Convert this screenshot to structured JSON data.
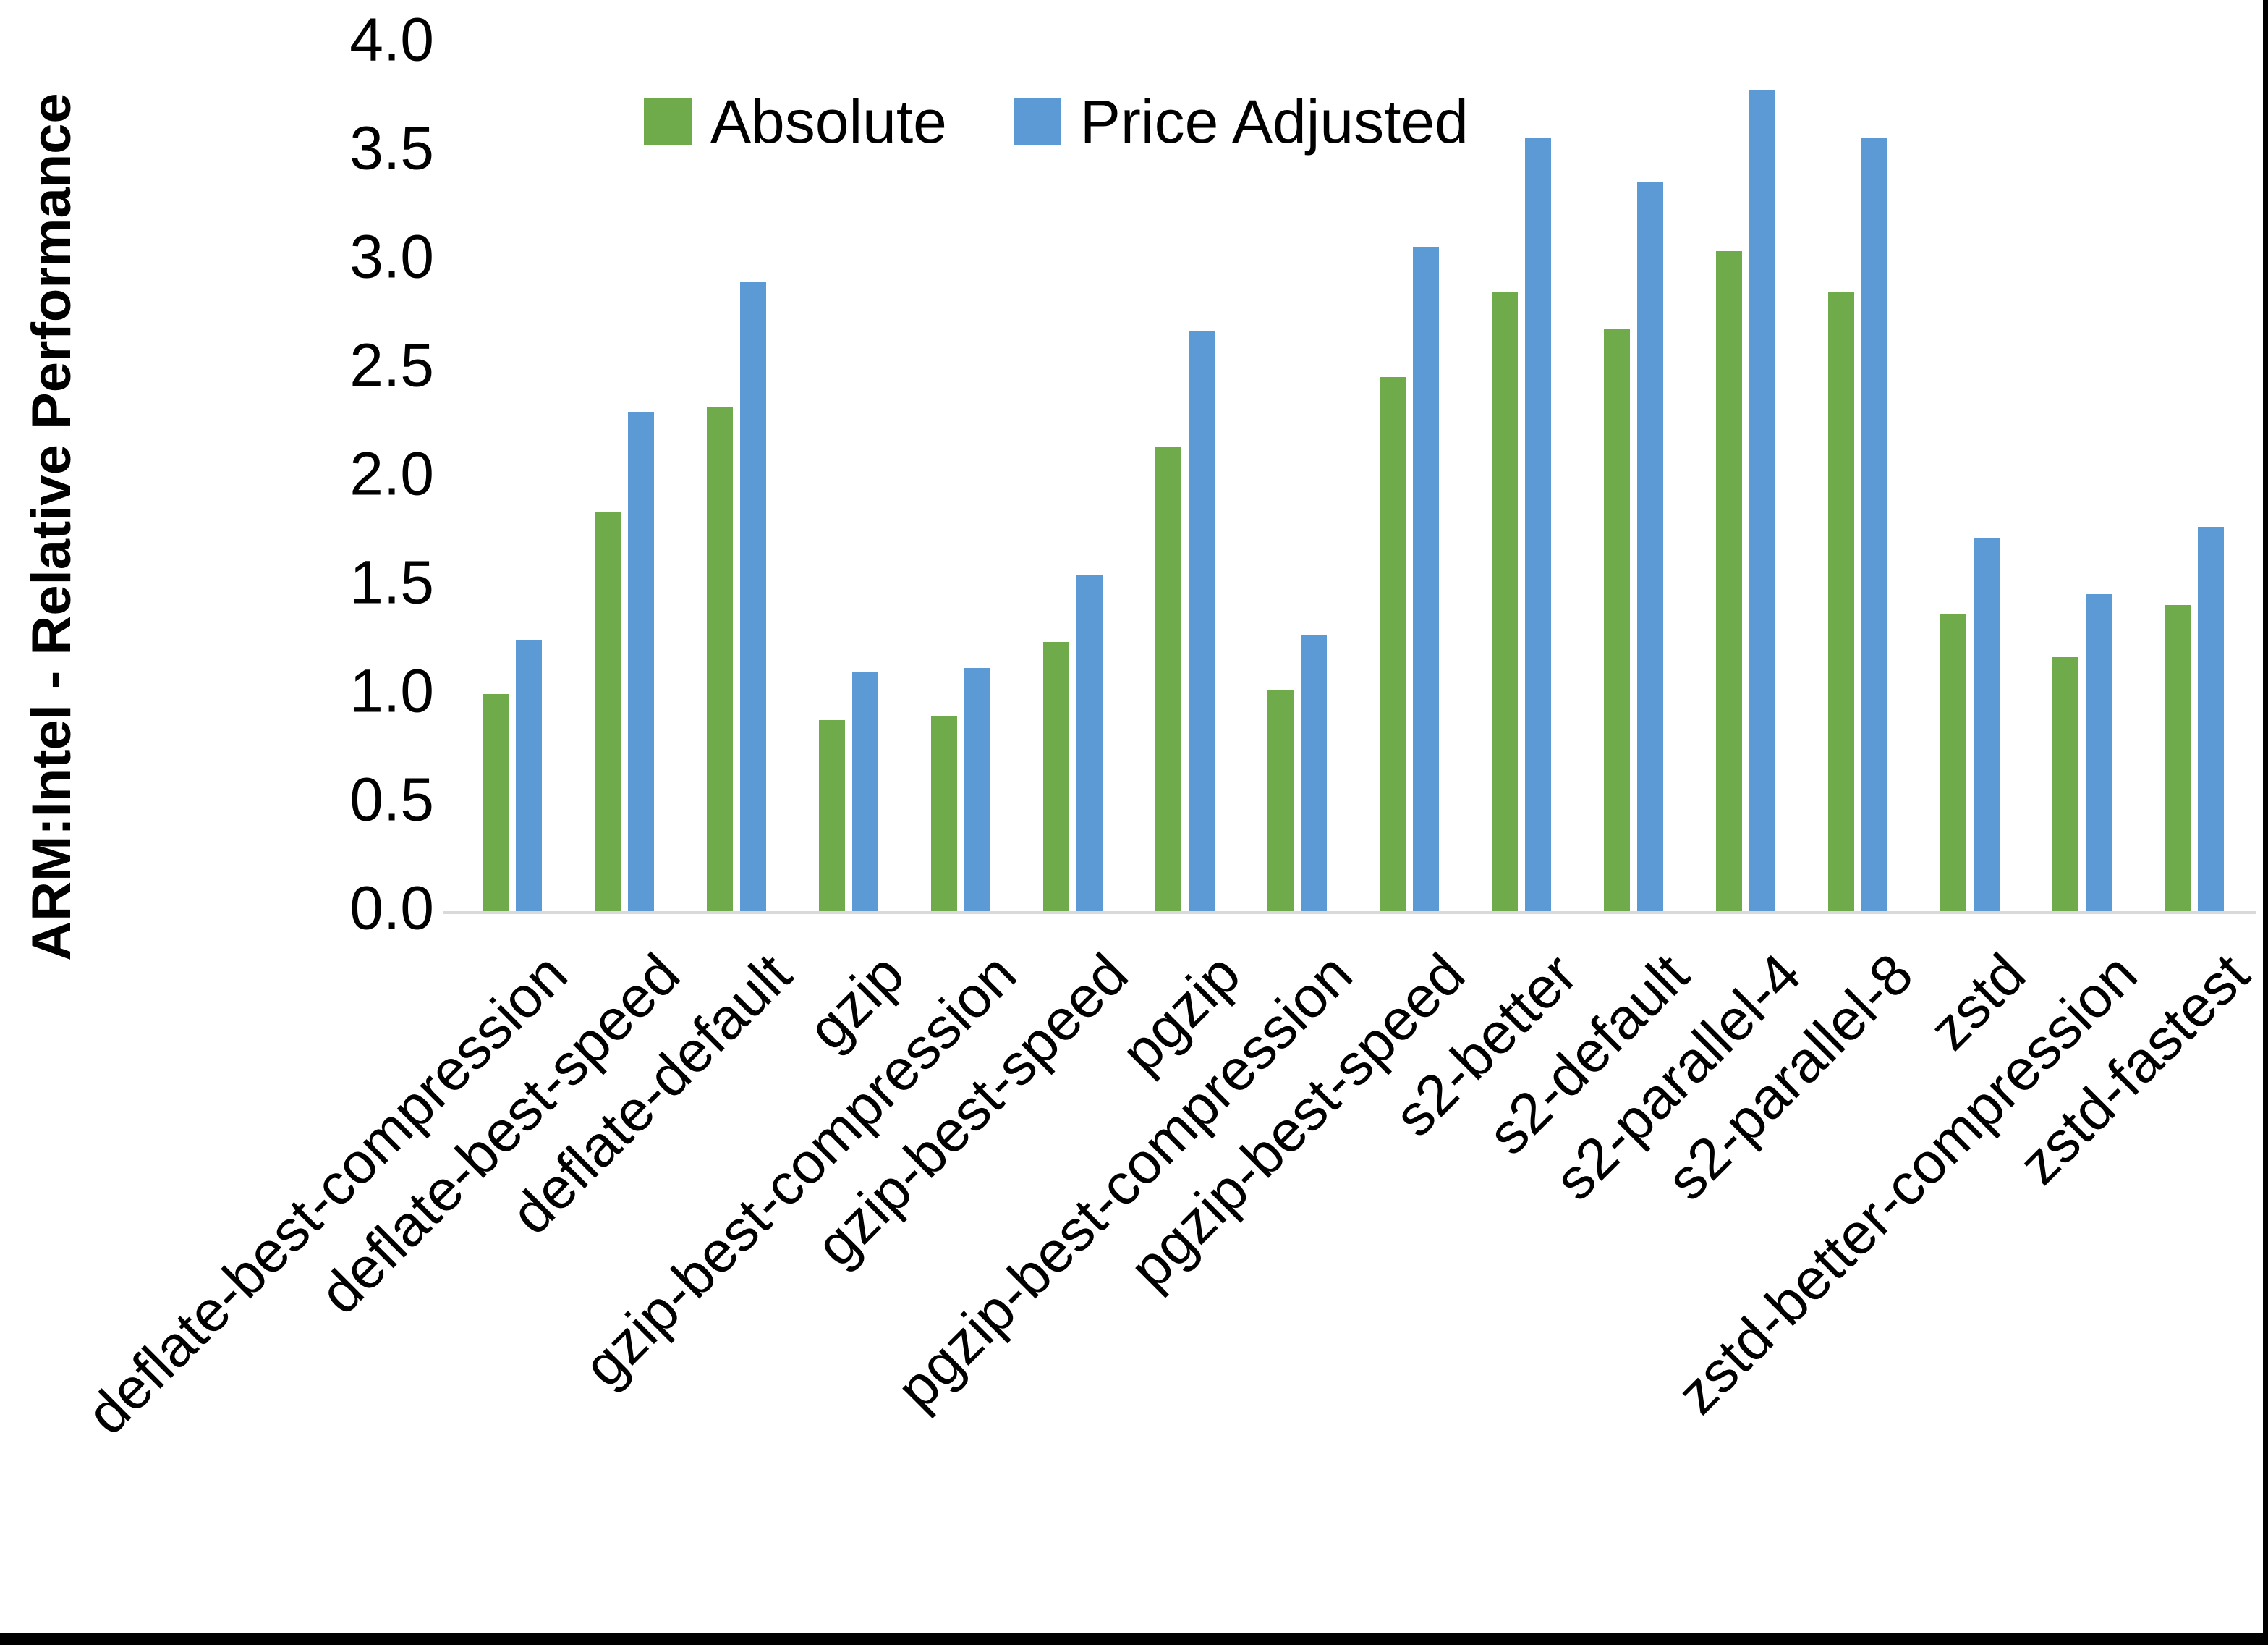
{
  "chart_data": {
    "type": "bar",
    "title": "",
    "ylabel": "ARM:Intel - Relative Performance",
    "xlabel": "",
    "ylim": [
      0.0,
      4.0
    ],
    "ytick_step": 0.5,
    "yticks": [
      "0.0",
      "0.5",
      "1.0",
      "1.5",
      "2.0",
      "2.5",
      "3.0",
      "3.5",
      "4.0"
    ],
    "grid": false,
    "legend_position": "top-center",
    "categories": [
      "deflate-best-compression",
      "deflate-best-speed",
      "deflate-default",
      "gzip",
      "gzip-best-compression",
      "gzip-best-speed",
      "pgzip",
      "pgzip-best-compression",
      "pgzip-best-speed",
      "s2-better",
      "s2-default",
      "s2-parallel-4",
      "s2-parallel-8",
      "zstd",
      "zstd-better-compression",
      "zstd-fastest"
    ],
    "series": [
      {
        "name": "Absolute",
        "color": "#6FAA4B",
        "values": [
          1.0,
          1.84,
          2.32,
          0.88,
          0.9,
          1.24,
          2.14,
          1.02,
          2.46,
          2.85,
          2.68,
          3.04,
          2.85,
          1.37,
          1.17,
          1.41
        ]
      },
      {
        "name": "Price Adjusted",
        "color": "#5B9AD5",
        "values": [
          1.25,
          2.3,
          2.9,
          1.1,
          1.12,
          1.55,
          2.67,
          1.27,
          3.06,
          3.56,
          3.36,
          3.78,
          3.56,
          1.72,
          1.46,
          1.77
        ]
      }
    ]
  },
  "colors": {
    "absolute": "#6FAA4B",
    "price_adjusted": "#5B9AD5",
    "axis_line": "#d9d9d9",
    "text": "#000000",
    "background": "#ffffff"
  }
}
